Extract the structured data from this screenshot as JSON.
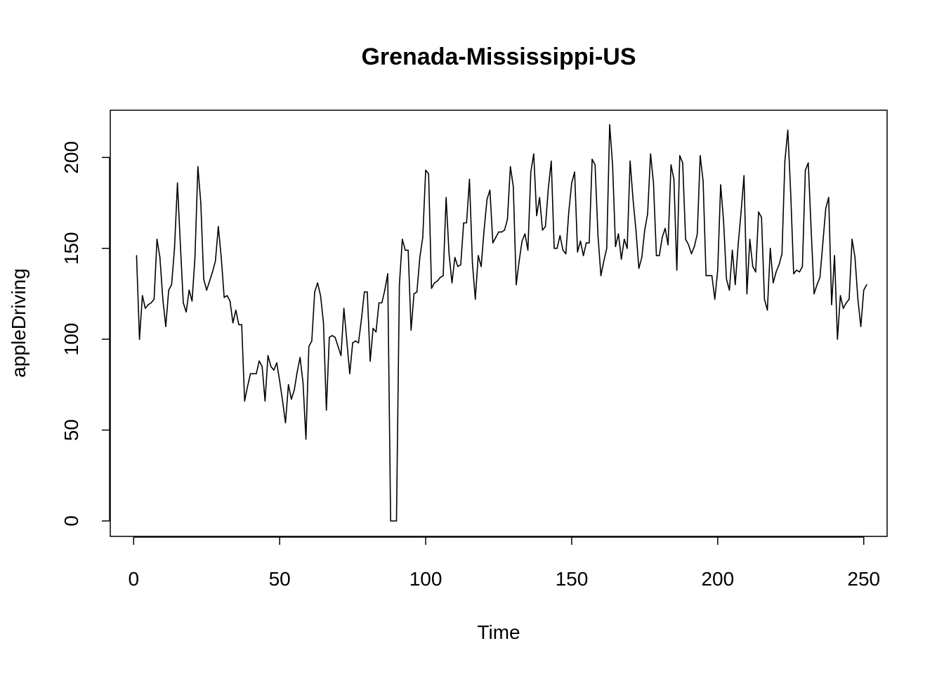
{
  "chart_data": {
    "type": "line",
    "title": "Grenada-Mississippi-US",
    "xlabel": "Time",
    "ylabel": "appleDriving",
    "xlim": [
      -8,
      258
    ],
    "ylim": [
      -8.5,
      226
    ],
    "xticks": [
      0,
      50,
      100,
      150,
      200,
      250
    ],
    "yticks": [
      0,
      50,
      100,
      150,
      200
    ],
    "grid": false,
    "legend": "none",
    "line_color": "#000000",
    "x_start": 1,
    "series": [
      {
        "values": [
          146,
          100,
          124,
          117,
          119,
          120,
          122,
          155,
          145,
          122,
          107,
          127,
          130,
          150,
          186,
          152,
          120,
          115,
          127,
          121,
          145,
          195,
          175,
          133,
          127,
          132,
          137,
          143,
          162,
          145,
          123,
          124,
          121,
          109,
          116,
          108,
          108,
          66,
          74,
          81,
          81,
          81,
          88,
          85,
          66,
          91,
          85,
          83,
          87,
          77,
          66,
          54,
          75,
          67,
          72,
          82,
          90,
          76,
          45,
          96,
          99,
          126,
          131,
          124,
          109,
          61,
          101,
          102,
          101,
          96,
          91,
          117,
          99,
          81,
          98,
          99,
          98,
          111,
          126,
          126,
          88,
          106,
          104,
          120,
          120,
          127,
          136,
          0,
          0,
          0,
          130,
          155,
          149,
          149,
          105,
          125,
          126,
          145,
          156,
          193,
          191,
          128,
          131,
          132,
          134,
          135,
          178,
          147,
          131,
          145,
          140,
          141,
          164,
          164,
          188,
          142,
          122,
          146,
          140,
          160,
          177,
          182,
          153,
          156,
          159,
          159,
          160,
          166,
          195,
          184,
          130,
          143,
          154,
          158,
          149,
          192,
          202,
          168,
          178,
          160,
          162,
          183,
          198,
          150,
          150,
          157,
          149,
          147,
          170,
          186,
          192,
          148,
          154,
          146,
          153,
          153,
          199,
          196,
          157,
          135,
          143,
          150,
          218,
          196,
          151,
          158,
          144,
          155,
          150,
          198,
          177,
          160,
          139,
          145,
          160,
          169,
          202,
          186,
          146,
          146,
          156,
          161,
          152,
          196,
          188,
          138,
          201,
          197,
          155,
          152,
          147,
          151,
          158,
          201,
          187,
          135,
          135,
          135,
          122,
          138,
          185,
          165,
          133,
          127,
          149,
          130,
          152,
          170,
          190,
          125,
          155,
          140,
          137,
          170,
          167,
          122,
          116,
          150,
          131,
          137,
          141,
          147,
          198,
          215,
          180,
          136,
          138,
          137,
          140,
          193,
          197,
          160,
          125,
          130,
          134,
          153,
          172,
          178,
          119,
          146,
          100,
          124,
          117,
          120,
          122,
          155,
          145,
          122,
          107,
          127,
          130
        ]
      }
    ]
  }
}
